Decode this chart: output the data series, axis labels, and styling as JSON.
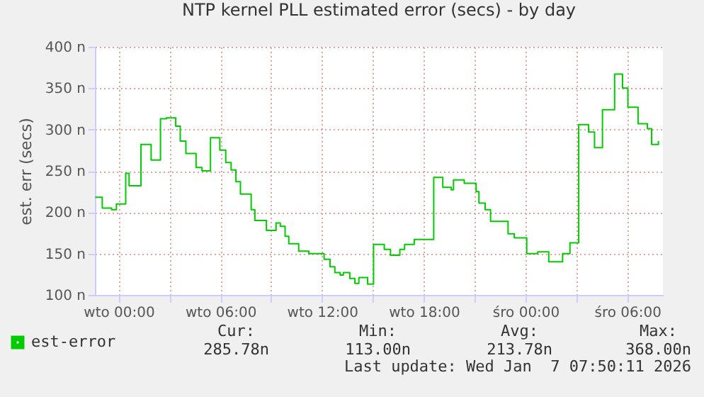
{
  "chart_data": {
    "type": "step",
    "title": "NTP kernel PLL estimated error (secs) - by day",
    "ylabel": "est. err (secs)",
    "x": [
      "2026-01-05T22:37",
      "2026-01-05T23:02",
      "2026-01-05T23:35",
      "2026-01-05T23:52",
      "2026-01-06T00:25",
      "2026-01-06T00:37",
      "2026-01-06T01:19",
      "2026-01-06T01:55",
      "2026-01-06T02:28",
      "2026-01-06T02:49",
      "2026-01-06T03:22",
      "2026-01-06T03:38",
      "2026-01-06T03:58",
      "2026-01-06T04:34",
      "2026-01-06T04:55",
      "2026-01-06T05:25",
      "2026-01-06T05:58",
      "2026-01-06T06:19",
      "2026-01-06T06:38",
      "2026-01-06T06:55",
      "2026-01-06T07:11",
      "2026-01-06T07:49",
      "2026-01-06T08:02",
      "2026-01-06T08:43",
      "2026-01-06T09:17",
      "2026-01-06T09:32",
      "2026-01-06T09:49",
      "2026-01-06T10:02",
      "2026-01-06T10:37",
      "2026-01-06T11:13",
      "2026-01-06T12:07",
      "2026-01-06T12:28",
      "2026-01-06T12:45",
      "2026-01-06T13:04",
      "2026-01-06T13:15",
      "2026-01-06T13:38",
      "2026-01-06T13:56",
      "2026-01-06T14:10",
      "2026-01-06T14:41",
      "2026-01-06T15:02",
      "2026-01-06T15:40",
      "2026-01-06T16:02",
      "2026-01-06T16:35",
      "2026-01-06T16:52",
      "2026-01-06T17:26",
      "2026-01-06T18:35",
      "2026-01-06T19:07",
      "2026-01-06T19:37",
      "2026-01-06T19:45",
      "2026-01-06T20:23",
      "2026-01-06T21:05",
      "2026-01-06T21:15",
      "2026-01-06T21:37",
      "2026-01-06T21:56",
      "2026-01-06T22:58",
      "2026-01-06T23:20",
      "2026-01-07T00:04",
      "2026-01-07T00:43",
      "2026-01-07T01:22",
      "2026-01-07T02:11",
      "2026-01-07T02:37",
      "2026-01-07T03:08",
      "2026-01-07T03:43",
      "2026-01-07T04:04",
      "2026-01-07T04:32",
      "2026-01-07T05:15",
      "2026-01-07T05:43",
      "2026-01-07T06:02",
      "2026-01-07T06:38",
      "2026-01-07T07:11",
      "2026-01-07T07:26",
      "2026-01-07T07:50"
    ],
    "series": [
      {
        "name": "est-error",
        "color": "#00cc00",
        "values": [
          218,
          205,
          203,
          210,
          247,
          232,
          282,
          263,
          313,
          314,
          304,
          286,
          271,
          254,
          250,
          290,
          275,
          260,
          251,
          237,
          222,
          203,
          190,
          178,
          187,
          183,
          171,
          162,
          153,
          150,
          143,
          134,
          127,
          124,
          127,
          120,
          114,
          121,
          113,
          161,
          155,
          148,
          155,
          161,
          167,
          242,
          230,
          227,
          239,
          235,
          225,
          211,
          203,
          189,
          174,
          169,
          150,
          152,
          140,
          150,
          163,
          306,
          297,
          278,
          324,
          367,
          350,
          327,
          307,
          301,
          282,
          286
        ]
      }
    ],
    "xlim": [
      "2026-01-05T22:36",
      "2026-01-07T08:06"
    ],
    "xticks": [
      {
        "value": "2026-01-06T00:00",
        "label": "wto 00:00"
      },
      {
        "value": "2026-01-06T03:00",
        "label": null
      },
      {
        "value": "2026-01-06T06:00",
        "label": "wto 06:00"
      },
      {
        "value": "2026-01-06T09:00",
        "label": null
      },
      {
        "value": "2026-01-06T12:00",
        "label": "wto 12:00"
      },
      {
        "value": "2026-01-06T15:00",
        "label": null
      },
      {
        "value": "2026-01-06T18:00",
        "label": "wto 18:00"
      },
      {
        "value": "2026-01-06T21:00",
        "label": null
      },
      {
        "value": "2026-01-07T00:00",
        "label": "śro 00:00"
      },
      {
        "value": "2026-01-07T03:00",
        "label": null
      },
      {
        "value": "2026-01-07T06:00",
        "label": "śro 06:00"
      }
    ],
    "ylim": [
      100,
      400
    ],
    "yticks": [
      {
        "value": 100,
        "label": "100 n"
      },
      {
        "value": 150,
        "label": "150 n"
      },
      {
        "value": 200,
        "label": "200 n"
      },
      {
        "value": 250,
        "label": "250 n"
      },
      {
        "value": 300,
        "label": "300 n"
      },
      {
        "value": 350,
        "label": "350 n"
      },
      {
        "value": 400,
        "label": "400 n"
      }
    ],
    "grid": true,
    "legend": "bottom left",
    "marker": "none",
    "line_style": "solid",
    "annotations": [
      "Cur:",
      "Min:",
      "Avg:",
      "Max:",
      "285.78n",
      "113.00n",
      "213.78n",
      "368.00n",
      "Last update: Wed Jan  7 07:50:11 2026"
    ]
  }
}
